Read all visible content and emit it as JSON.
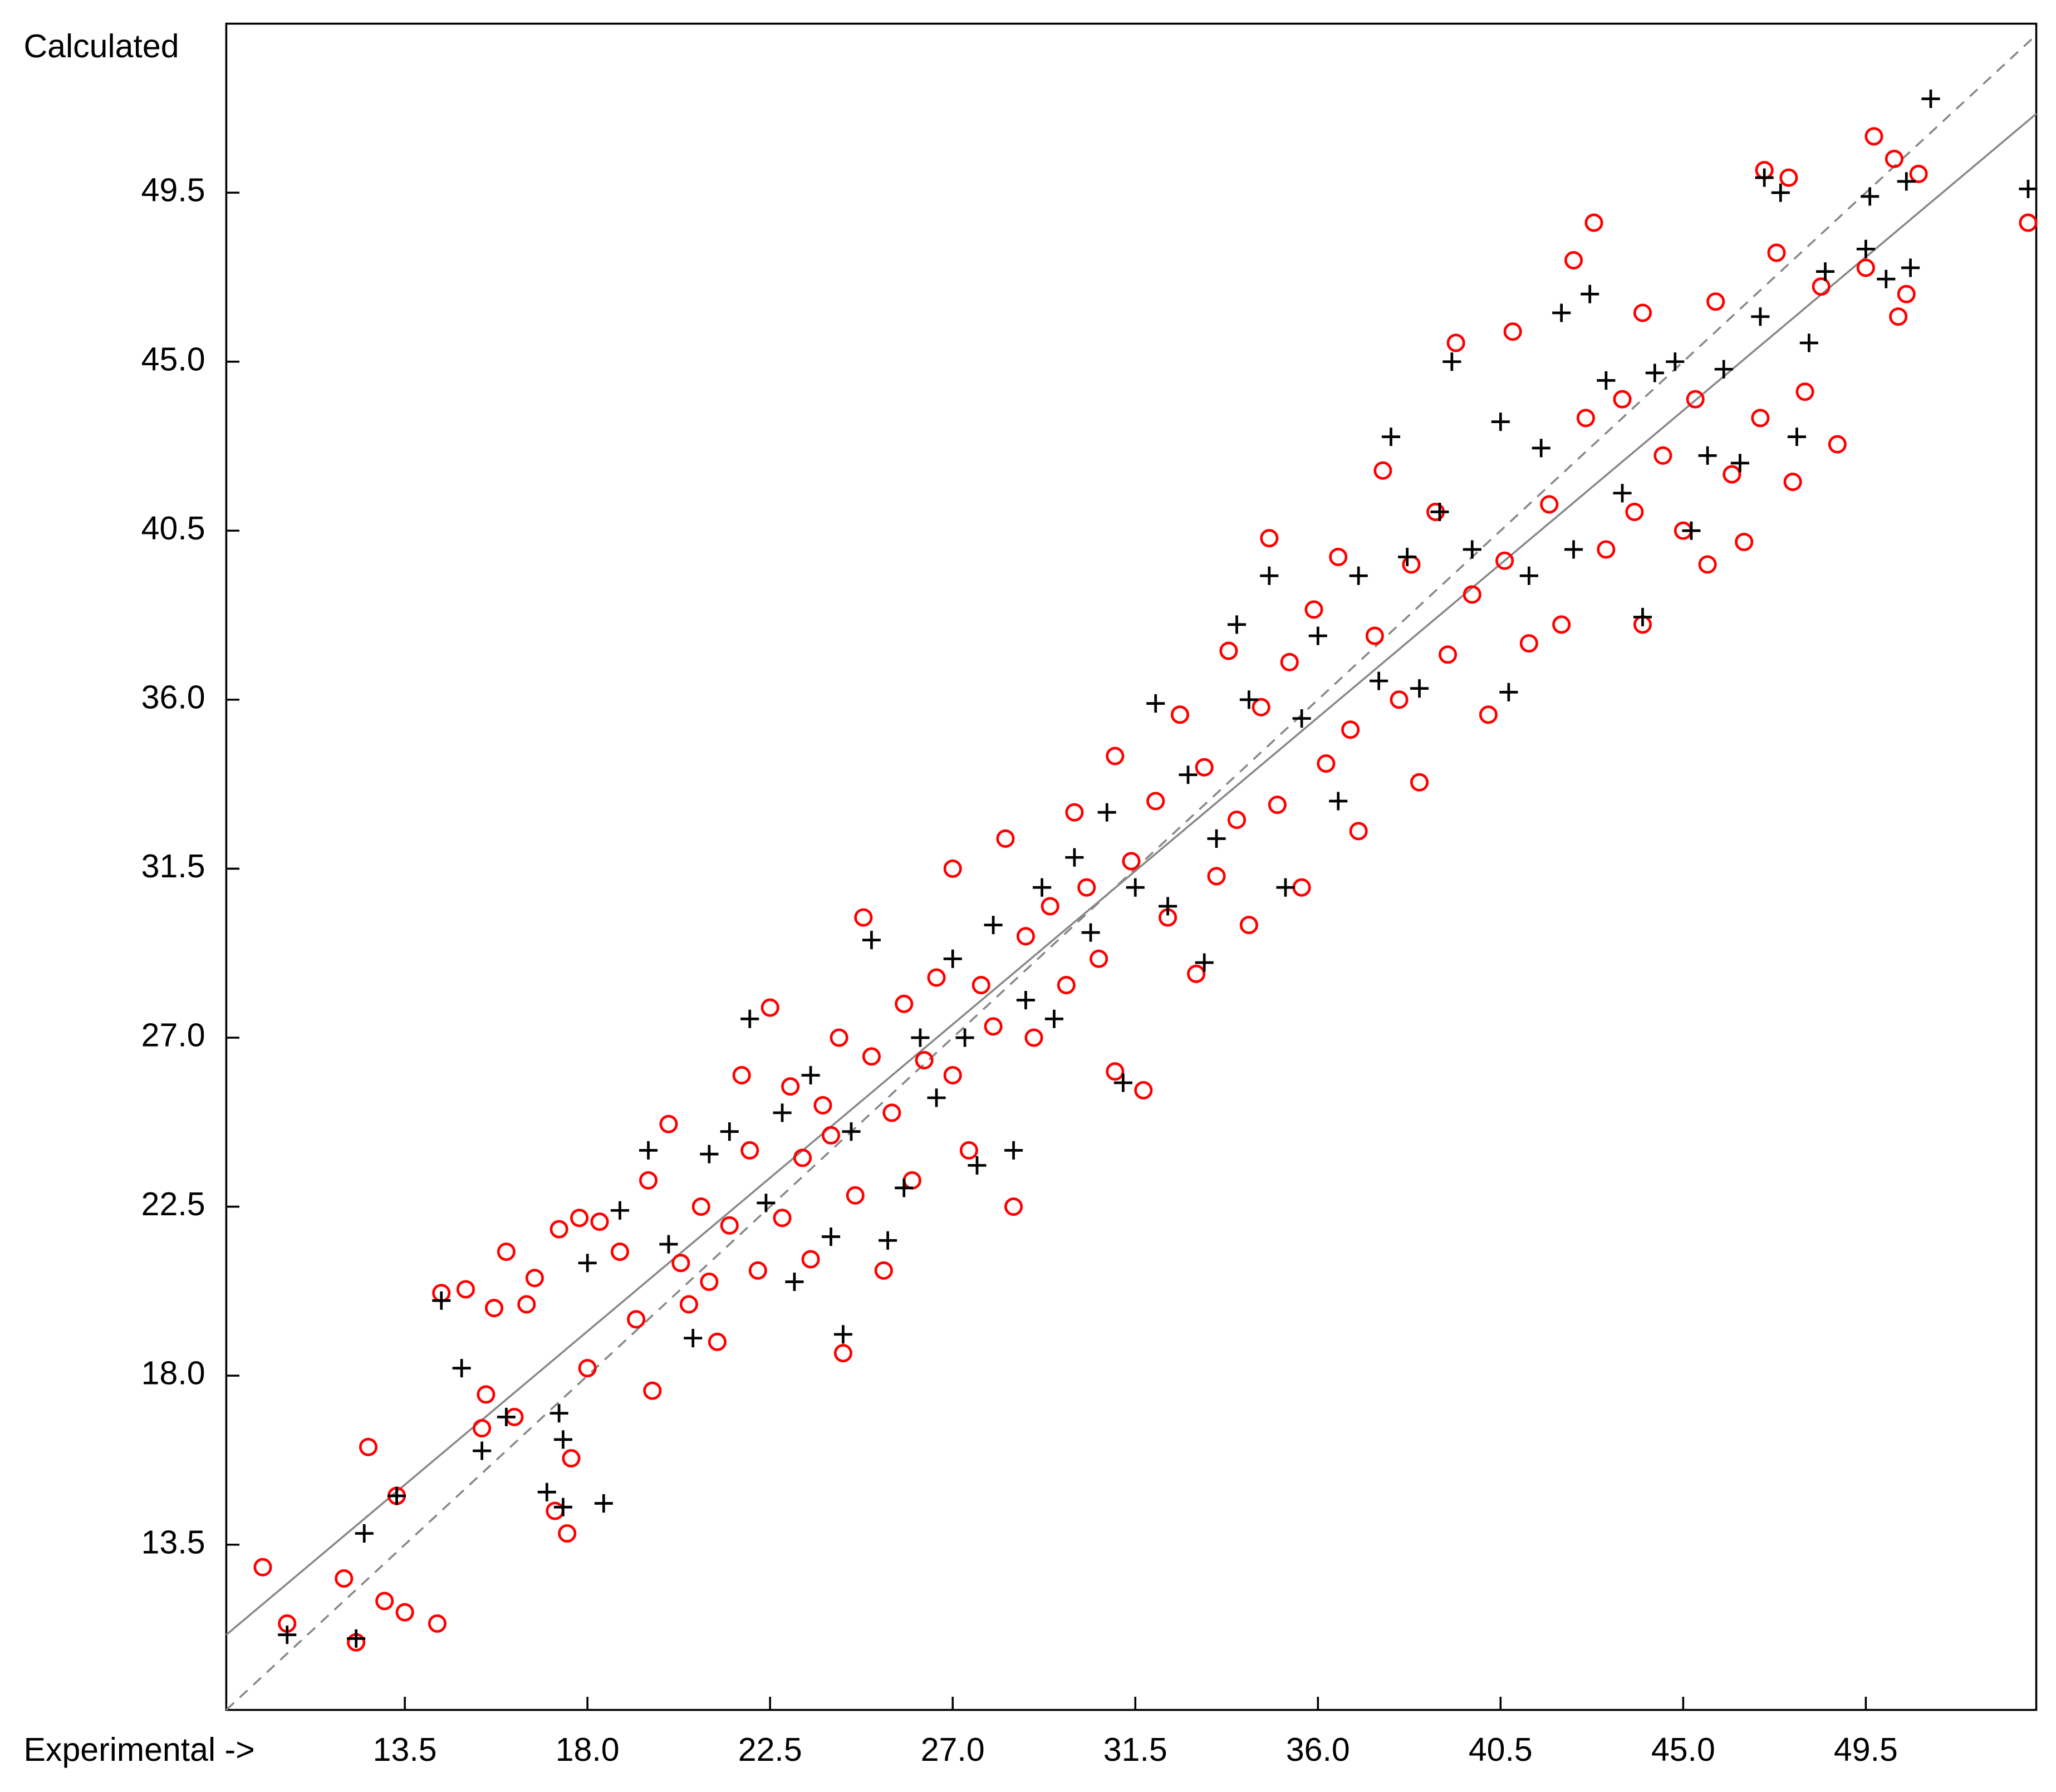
{
  "chart_data": {
    "type": "scatter",
    "ylabel": "Calculated",
    "xlabel": "Experimental ->",
    "xlim": [
      9.1,
      53.7
    ],
    "ylim": [
      9.1,
      54.0
    ],
    "xticks": [
      13.5,
      {
        "value": 18,
        "label": "18.0"
      },
      22.5,
      {
        "value": 27,
        "label": "27.0"
      },
      31.5,
      {
        "value": 36,
        "label": "36.0"
      },
      40.5,
      {
        "value": 45,
        "label": "45.0"
      },
      49.5
    ],
    "yticks": [
      13.5,
      {
        "value": 18,
        "label": "18.0"
      },
      22.5,
      {
        "value": 27,
        "label": "27.0"
      },
      31.5,
      {
        "value": 36,
        "label": "36.0"
      },
      40.5,
      {
        "value": 45,
        "label": "45.0"
      },
      49.5
    ],
    "lines": [
      {
        "style": "dashed",
        "color": "#888888",
        "x": [
          9.1,
          53.7
        ],
        "y": [
          9.1,
          53.7
        ]
      },
      {
        "style": "solid",
        "color": "#888888",
        "x": [
          9.1,
          53.7
        ],
        "y": [
          11.1,
          51.6
        ]
      }
    ],
    "series": [
      {
        "marker": "circle",
        "color": "#ff0000",
        "x": [
          10.0,
          10.6,
          12.0,
          12.3,
          12.6,
          13.0,
          13.3,
          13.5,
          14.3,
          14.4,
          15.0,
          15.4,
          15.5,
          15.7,
          16.0,
          16.2,
          16.5,
          16.7,
          17.2,
          17.3,
          17.5,
          17.6,
          17.8,
          18.0,
          18.3,
          18.8,
          19.2,
          19.5,
          19.6,
          20.0,
          20.3,
          20.5,
          20.8,
          21.0,
          21.2,
          21.5,
          21.8,
          22.0,
          22.2,
          22.5,
          22.8,
          23.0,
          23.3,
          23.5,
          23.8,
          24.0,
          24.2,
          24.3,
          24.6,
          24.8,
          25.0,
          25.3,
          25.5,
          25.8,
          26.0,
          26.3,
          26.6,
          27.0,
          27.0,
          27.4,
          27.7,
          28.0,
          28.3,
          28.5,
          28.8,
          29.0,
          29.4,
          29.8,
          30.0,
          30.3,
          30.6,
          31.0,
          31.0,
          31.4,
          31.7,
          32.0,
          32.3,
          32.6,
          33.0,
          33.2,
          33.5,
          33.8,
          34.0,
          34.3,
          34.6,
          34.8,
          35.0,
          35.3,
          35.6,
          35.9,
          36.2,
          36.5,
          36.8,
          37.0,
          37.4,
          37.6,
          38.0,
          38.3,
          38.5,
          38.9,
          39.2,
          39.4,
          39.8,
          40.2,
          40.6,
          40.8,
          41.2,
          41.7,
          42.0,
          42.3,
          42.6,
          42.8,
          43.1,
          43.5,
          43.8,
          44.0,
          44.0,
          44.5,
          45.0,
          45.3,
          45.6,
          45.8,
          46.2,
          46.5,
          46.9,
          47.0,
          47.3,
          47.6,
          47.7,
          48.0,
          48.4,
          48.8,
          49.5,
          49.7,
          50.3,
          50.5,
          50.8,
          53.5,
          50.2
        ],
        "y": [
          12.9,
          11.4,
          12.6,
          10.9,
          16.1,
          12.0,
          14.8,
          11.7,
          11.4,
          20.2,
          20.3,
          16.6,
          17.5,
          19.8,
          21.3,
          16.9,
          19.9,
          20.6,
          14.4,
          21.9,
          13.8,
          15.8,
          22.2,
          18.2,
          22.1,
          21.3,
          19.5,
          23.2,
          17.6,
          24.7,
          21.0,
          19.9,
          22.5,
          20.5,
          18.9,
          22.0,
          26.0,
          24.0,
          20.8,
          27.8,
          22.2,
          25.7,
          23.8,
          21.1,
          25.2,
          24.4,
          27.0,
          18.6,
          22.8,
          30.2,
          26.5,
          20.8,
          25.0,
          27.9,
          23.2,
          26.4,
          28.6,
          26.0,
          31.5,
          24.0,
          28.4,
          27.3,
          32.3,
          22.5,
          29.7,
          27.0,
          30.5,
          28.4,
          33.0,
          31.0,
          29.1,
          34.5,
          26.1,
          31.7,
          25.6,
          33.3,
          30.2,
          35.6,
          28.7,
          34.2,
          31.3,
          37.3,
          32.8,
          30.0,
          35.8,
          40.3,
          33.2,
          37.0,
          31.0,
          38.4,
          34.3,
          39.8,
          35.2,
          32.5,
          37.7,
          42.1,
          36.0,
          39.6,
          33.8,
          41.0,
          37.2,
          45.5,
          38.8,
          35.6,
          39.7,
          45.8,
          37.5,
          41.2,
          38.0,
          47.7,
          43.5,
          48.7,
          40.0,
          44.0,
          41.0,
          46.3,
          38.0,
          42.5,
          40.5,
          44.0,
          39.6,
          46.6,
          42.0,
          40.2,
          43.5,
          50.1,
          47.9,
          49.9,
          41.8,
          44.2,
          47.0,
          42.8,
          47.5,
          51.0,
          46.2,
          46.8,
          50.0,
          48.7,
          50.4
        ]
      },
      {
        "marker": "plus",
        "color": "#000000",
        "x": [
          10.6,
          12.3,
          12.5,
          13.3,
          14.4,
          14.9,
          15.4,
          16.0,
          17.0,
          17.4,
          17.4,
          18.4,
          17.3,
          18.0,
          18.8,
          19.5,
          20.0,
          20.6,
          21.0,
          21.5,
          22.0,
          22.4,
          22.8,
          23.1,
          23.5,
          24.0,
          24.3,
          24.5,
          25.0,
          25.4,
          25.8,
          26.2,
          26.6,
          27.0,
          27.3,
          27.6,
          28.0,
          28.5,
          28.8,
          29.2,
          29.5,
          30.0,
          30.4,
          30.8,
          31.2,
          31.5,
          32.0,
          32.3,
          32.8,
          33.2,
          33.5,
          34.0,
          34.3,
          34.8,
          35.2,
          35.6,
          36.0,
          36.5,
          37.0,
          37.5,
          37.8,
          38.2,
          38.5,
          39.0,
          39.3,
          39.8,
          40.5,
          40.7,
          41.2,
          41.5,
          42.0,
          42.3,
          42.7,
          43.1,
          43.5,
          44.0,
          44.3,
          44.8,
          45.2,
          45.6,
          46.0,
          46.4,
          46.9,
          47.0,
          47.4,
          47.8,
          48.1,
          48.5,
          49.5,
          49.6,
          50.0,
          50.6,
          50.5,
          51.1,
          53.5
        ],
        "y": [
          11.1,
          11.0,
          13.8,
          14.8,
          20.0,
          18.2,
          16.0,
          16.9,
          14.9,
          16.3,
          14.5,
          14.6,
          17.0,
          21.0,
          22.4,
          24.0,
          21.5,
          19.0,
          23.9,
          24.5,
          27.5,
          22.6,
          25.0,
          20.5,
          26.0,
          21.7,
          19.1,
          24.5,
          29.6,
          21.6,
          23.0,
          27.0,
          25.4,
          29.1,
          27.0,
          23.6,
          30.0,
          24.0,
          28.0,
          31.0,
          27.5,
          31.8,
          29.8,
          33.0,
          25.8,
          31.0,
          35.9,
          30.5,
          34.0,
          29.0,
          32.3,
          38.0,
          36.0,
          39.3,
          31.0,
          35.5,
          37.7,
          33.3,
          39.3,
          36.5,
          43.0,
          39.8,
          36.3,
          41.0,
          45.0,
          40.0,
          43.4,
          36.2,
          39.3,
          42.7,
          46.3,
          40.0,
          46.8,
          44.5,
          41.5,
          38.2,
          44.7,
          45.0,
          40.5,
          42.5,
          44.8,
          42.3,
          46.2,
          49.9,
          49.5,
          43.0,
          45.5,
          47.4,
          48.0,
          49.4,
          47.2,
          47.5,
          49.8,
          52.0,
          49.6
        ]
      }
    ]
  }
}
